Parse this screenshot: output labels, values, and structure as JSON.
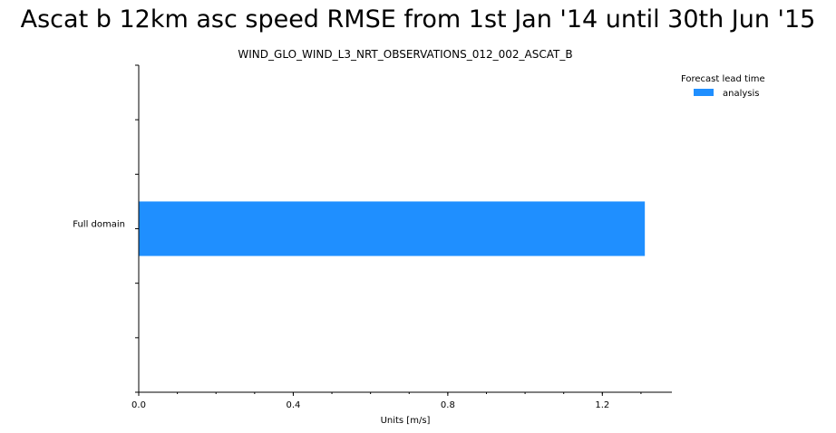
{
  "title": "Ascat b 12km asc speed RMSE from 1st Jan '14 until 30th Jun '15",
  "chart_data": {
    "type": "bar",
    "orientation": "horizontal",
    "title": "Ascat b 12km asc speed RMSE from 1st Jan '14 until 30th Jun '15",
    "subtitle": "WIND_GLO_WIND_L3_NRT_OBSERVATIONS_012_002_ASCAT_B",
    "xlabel": "Units [m/s]",
    "ylabel": "",
    "categories": [
      "Full domain"
    ],
    "series": [
      {
        "name": "analysis",
        "values": [
          1.31
        ],
        "color": "#1f8fff"
      }
    ],
    "xlim": [
      0,
      1.38
    ],
    "xticks": [
      0.0,
      0.4,
      0.8,
      1.2
    ],
    "xtick_labels": [
      "0.0",
      "0.4",
      "0.8",
      "1.2"
    ],
    "xminor_step": 0.1,
    "ylim": [
      -3,
      3
    ],
    "legend": {
      "title": "Forecast lead time",
      "position": "top-right-outside"
    },
    "grid": false
  }
}
